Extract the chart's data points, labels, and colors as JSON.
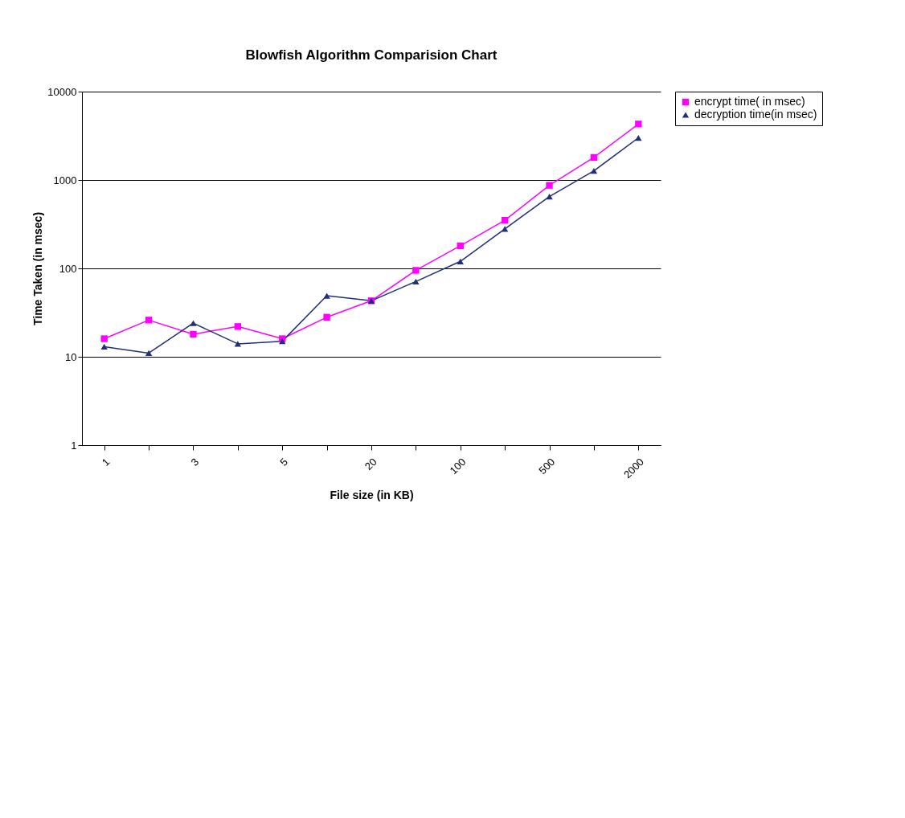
{
  "chart_data": {
    "type": "line",
    "title": "Blowfish Algorithm Comparision Chart",
    "xlabel": "File size (in KB)",
    "ylabel": "Time Taken (in msec)",
    "categories": [
      "1",
      null,
      "3",
      null,
      "5",
      null,
      "20",
      null,
      "100",
      null,
      "500",
      null,
      "2000"
    ],
    "series": [
      {
        "name": "encrypt time( in msec)",
        "color": "#ff00ff",
        "marker": "square",
        "values": [
          16,
          26,
          18,
          22,
          16,
          28,
          43,
          95,
          180,
          350,
          870,
          1800,
          4300
        ]
      },
      {
        "name": "decryption time(in msec)",
        "color": "#1f2f7a",
        "marker": "triangle",
        "values": [
          13,
          11,
          24,
          14,
          15,
          49,
          43,
          71,
          120,
          280,
          650,
          1270,
          3000
        ]
      }
    ],
    "log": true,
    "ylim": [
      1,
      10000
    ],
    "yticks": [
      1,
      10,
      100,
      1000,
      10000
    ],
    "grid": "y",
    "legend": "right"
  }
}
